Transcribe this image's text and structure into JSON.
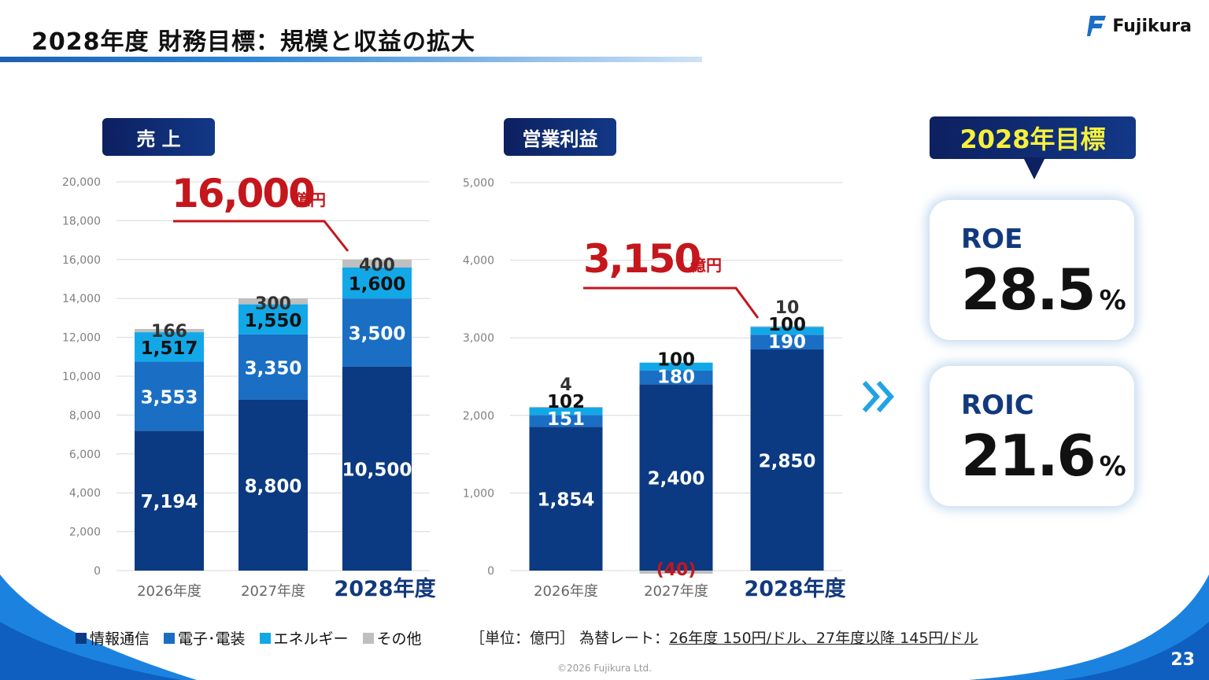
{
  "header": {
    "title": "2028年度 財務目標：規模と収益の拡大",
    "logo_text": "Fujikura"
  },
  "sales_panel": {
    "label": "売 上",
    "highlight_value": "16,000",
    "highlight_unit": "億円"
  },
  "profit_panel": {
    "label": "営業利益",
    "highlight_value": "3,150",
    "highlight_unit": "億円"
  },
  "target_panel": {
    "title": "2028年目標",
    "arrow_icon": "double-chevron-right-icon",
    "metrics": [
      {
        "label": "ROE",
        "value": "28.5",
        "unit": "%"
      },
      {
        "label": "ROIC",
        "value": "21.6",
        "unit": "%"
      }
    ]
  },
  "legend": [
    {
      "label": "情報通信",
      "color": "#0b3a82"
    },
    {
      "label": "電子･電装",
      "color": "#1a6fc4"
    },
    {
      "label": "エネルギー",
      "color": "#12a8e8"
    },
    {
      "label": "その他",
      "color": "#bfbfbf"
    }
  ],
  "note": {
    "prefix": "［単位：億円］ 為替レート：",
    "detail": "26年度 150円/ドル、27年度以降 145円/ドル"
  },
  "copyright": "©2026 Fujikura Ltd.",
  "page_number": "23",
  "chart_data": [
    {
      "type": "bar",
      "stacked": true,
      "title": "売 上",
      "categories": [
        "2026年度",
        "2027年度",
        "2028年度"
      ],
      "highlight_category": "2028年度",
      "ylim": [
        0,
        20000
      ],
      "yticks": [
        "0",
        "2,000",
        "4,000",
        "6,000",
        "8,000",
        "10,000",
        "12,000",
        "14,000",
        "16,000",
        "18,000",
        "20,000"
      ],
      "ytick_values": [
        0,
        2000,
        4000,
        6000,
        8000,
        10000,
        12000,
        14000,
        16000,
        18000,
        20000
      ],
      "grid": true,
      "series": [
        {
          "name": "情報通信",
          "values": [
            7194,
            8800,
            10500
          ],
          "labels": [
            "7,194",
            "8,800",
            "10,500"
          ]
        },
        {
          "name": "電子･電装",
          "values": [
            3553,
            3350,
            3500
          ],
          "labels": [
            "3,553",
            "3,350",
            "3,500"
          ]
        },
        {
          "name": "エネルギー",
          "values": [
            1517,
            1550,
            1600
          ],
          "labels": [
            "1,517",
            "1,550",
            "1,600"
          ]
        },
        {
          "name": "その他",
          "values": [
            166,
            300,
            400
          ],
          "labels": [
            "166",
            "300",
            "400"
          ]
        }
      ]
    },
    {
      "type": "bar",
      "stacked": true,
      "title": "営業利益",
      "categories": [
        "2026年度",
        "2027年度",
        "2028年度"
      ],
      "highlight_category": "2028年度",
      "ylim": [
        0,
        5000
      ],
      "yticks": [
        "0",
        "1,000",
        "2,000",
        "3,000",
        "4,000",
        "5,000"
      ],
      "ytick_values": [
        0,
        1000,
        2000,
        3000,
        4000,
        5000
      ],
      "grid": true,
      "series": [
        {
          "name": "情報通信",
          "values": [
            1854,
            2400,
            2850
          ],
          "labels": [
            "1,854",
            "2,400",
            "2,850"
          ]
        },
        {
          "name": "電子･電装",
          "values": [
            151,
            180,
            190
          ],
          "labels": [
            "151",
            "180",
            "190"
          ]
        },
        {
          "name": "エネルギー",
          "values": [
            102,
            100,
            100
          ],
          "labels": [
            "102",
            "100",
            "100"
          ]
        },
        {
          "name": "その他",
          "values": [
            4,
            -40,
            10
          ],
          "labels": [
            "4",
            "(40)",
            "10"
          ]
        }
      ]
    }
  ]
}
